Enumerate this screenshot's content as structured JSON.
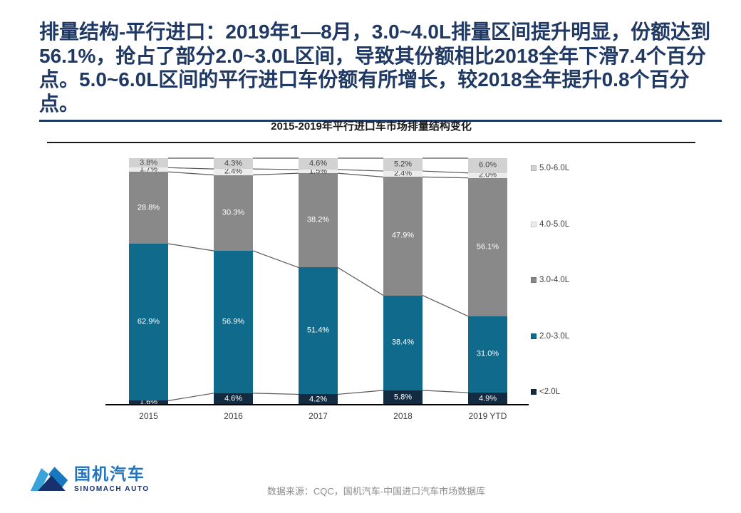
{
  "headline": "排量结构-平行进口：2019年1—8月，3.0~4.0L排量区间提升明显，份额达到56.1%，抢占了部分2.0~3.0L区间，导致其份额相比2018全年下滑7.4个百分点。5.0~6.0L区间的平行进口车份额有所增长，较2018全年提升0.8个百分点。",
  "chart_data": {
    "type": "bar",
    "subtype": "100%-stacked-column-with-series-lines",
    "title": "2015-2019年平行进口车市场排量结构变化",
    "categories": [
      "2015",
      "2016",
      "2017",
      "2018",
      "2019 YTD"
    ],
    "series": [
      {
        "name": "<2.0L",
        "values": [
          1.6,
          4.6,
          4.2,
          5.8,
          4.9
        ],
        "color": "#122b40",
        "label_color": "#ffffff"
      },
      {
        "name": "2.0-3.0L",
        "values": [
          62.9,
          56.9,
          51.4,
          38.4,
          31.0
        ],
        "color": "#0f6a8c",
        "label_color": "#ffffff"
      },
      {
        "name": "3.0-4.0L",
        "values": [
          28.8,
          30.3,
          38.2,
          47.9,
          56.1
        ],
        "color": "#898989",
        "label_color": "#ffffff"
      },
      {
        "name": "4.0-5.0L",
        "values": [
          1.7,
          2.4,
          1.5,
          2.4,
          2.0
        ],
        "color": "#ececec",
        "label_color": "#3f3f3f"
      },
      {
        "name": "5.0-6.0L",
        "values": [
          3.8,
          4.3,
          4.6,
          5.2,
          6.0
        ],
        "color": "#d2d2d2",
        "label_color": "#3f3f3f"
      }
    ],
    "legend_top_to_bottom": [
      "5.0-6.0L",
      "4.0-5.0L",
      "3.0-4.0L",
      "2.0-3.0L",
      "<2.0L"
    ],
    "legend_position": "right",
    "value_format": "percent_one_decimal",
    "series_lines": true,
    "ylim": [
      0,
      100
    ],
    "grid": false
  },
  "source_note": "数据来源：CQC，国机汽车-中国进口汽车市场数据库",
  "logo": {
    "name_cn": "国机汽车",
    "name_en": "SINOMACH AUTO"
  },
  "colors": {
    "headline_navy": "#1f3864",
    "axis_black": "#000000",
    "connector_gray": "#595959",
    "source_gray": "#8c8c8c",
    "logo_light_blue": "#3aa4da",
    "logo_mid_blue": "#1679bf",
    "logo_navy": "#16316e",
    "logo_text_blue": "#2373be"
  }
}
